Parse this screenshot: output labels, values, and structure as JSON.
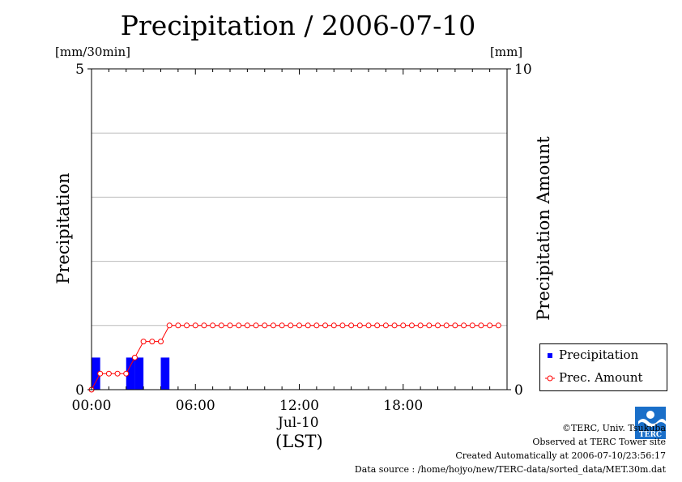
{
  "title": "Precipitation / 2006-07-10",
  "left_unit": "[mm/30min]",
  "right_unit": "[mm]",
  "left_axis_label": "Precipitation",
  "right_axis_label": "Precipitation Amount",
  "x_date_label": "Jul-10",
  "x_tz_label": "(LST)",
  "legend": {
    "items": [
      {
        "label": "Precipitation",
        "symbol": "blue-square"
      },
      {
        "label": "Prec. Amount",
        "symbol": "red-circle-line"
      }
    ]
  },
  "credits": {
    "line1": "©TERC, Univ. Tsukuba",
    "line2": "Observed at TERC Tower site",
    "line3": "Created Automatically at 2006-07-10/23:56:17",
    "line4": "Data source : /home/hojyo/new/TERC-data/sorted_data/MET.30m.dat"
  },
  "logo_text": "TERC",
  "colors": {
    "bar": "#0000ff",
    "line": "#ff0000",
    "grid": "#bbbbbb",
    "axis": "#000000"
  },
  "chart_data": {
    "type": "bar+line",
    "x_tick_labels": [
      "00:00",
      "06:00",
      "12:00",
      "18:00"
    ],
    "x_tick_hours": [
      0,
      6,
      12,
      18
    ],
    "xlim_hours": [
      0,
      24
    ],
    "left_axis": {
      "ylim": [
        0,
        5
      ],
      "tick_labels": [
        "0",
        "5"
      ],
      "ticks": [
        0,
        5
      ],
      "gridlines": [
        1,
        2,
        3,
        4
      ]
    },
    "right_axis": {
      "ylim": [
        0,
        10
      ],
      "tick_labels": [
        "0",
        "10"
      ],
      "ticks": [
        0,
        10
      ]
    },
    "series": [
      {
        "name": "Precipitation",
        "kind": "bar",
        "axis": "left",
        "bar_width_hours": 0.5,
        "points": [
          {
            "hour": 0.0,
            "value": 0.5
          },
          {
            "hour": 2.0,
            "value": 0.5
          },
          {
            "hour": 2.5,
            "value": 0.5
          },
          {
            "hour": 4.0,
            "value": 0.5
          }
        ]
      },
      {
        "name": "Prec. Amount",
        "kind": "line",
        "axis": "right",
        "x_start_hour": 0,
        "x_step_hours": 0.5,
        "values": [
          0.0,
          0.5,
          0.5,
          0.5,
          0.5,
          1.0,
          1.5,
          1.5,
          1.5,
          2.0,
          2.0,
          2.0,
          2.0,
          2.0,
          2.0,
          2.0,
          2.0,
          2.0,
          2.0,
          2.0,
          2.0,
          2.0,
          2.0,
          2.0,
          2.0,
          2.0,
          2.0,
          2.0,
          2.0,
          2.0,
          2.0,
          2.0,
          2.0,
          2.0,
          2.0,
          2.0,
          2.0,
          2.0,
          2.0,
          2.0,
          2.0,
          2.0,
          2.0,
          2.0,
          2.0,
          2.0,
          2.0,
          2.0
        ]
      }
    ]
  }
}
